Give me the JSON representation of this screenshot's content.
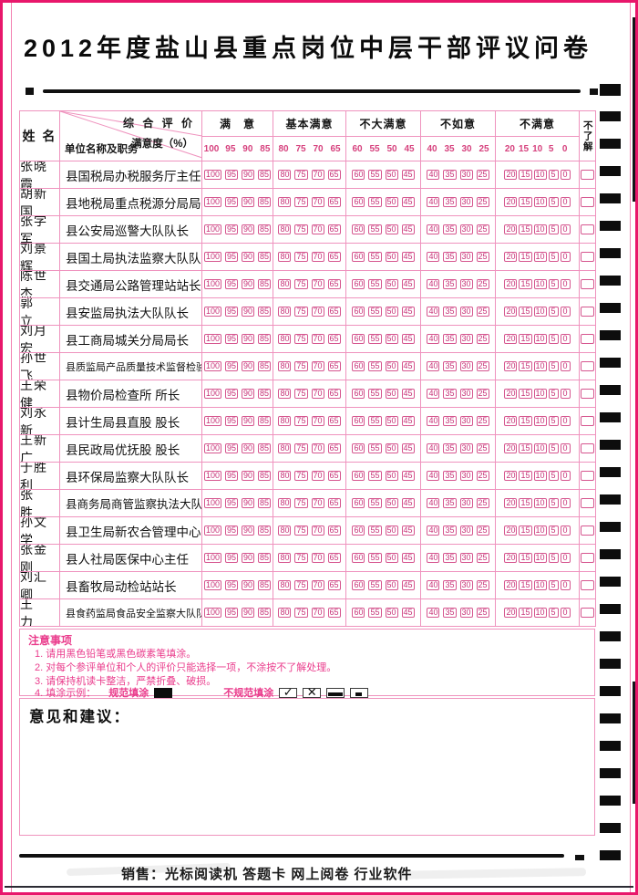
{
  "page": {
    "title": "2012年度盐山县重点岗位中层干部评议问卷",
    "footer": "销售：光标阅读机 答题卡 网上阅卷 行业软件"
  },
  "table": {
    "name_header": "姓 名",
    "unit_header": "单位名称及职务",
    "eval_header": "综 合 评 价",
    "satisfaction_header": "满意度（%）",
    "unknown_header": "不了解",
    "categories": [
      {
        "label": "满　意",
        "values": [
          "100",
          "95",
          "90",
          "85"
        ]
      },
      {
        "label": "基本满意",
        "values": [
          "80",
          "75",
          "70",
          "65"
        ]
      },
      {
        "label": "不大满意",
        "values": [
          "60",
          "55",
          "50",
          "45"
        ]
      },
      {
        "label": "不如意",
        "values": [
          "40",
          "35",
          "30",
          "25"
        ]
      },
      {
        "label": "不满意",
        "values": [
          "20",
          "15",
          "10",
          "5",
          "0"
        ]
      }
    ],
    "rows": [
      {
        "name": "张晓霞",
        "unit": "县国税局办税服务厅主任"
      },
      {
        "name": "胡新国",
        "unit": "县地税局重点税源分局局长"
      },
      {
        "name": "张学军",
        "unit": "县公安局巡警大队队长"
      },
      {
        "name": "刘景辉",
        "unit": "县国土局执法监察大队队长"
      },
      {
        "name": "陈世杰",
        "unit": "县交通局公路管理站站长"
      },
      {
        "name": "郭　立",
        "unit": "县安监局执法大队队长"
      },
      {
        "name": "刘月宏",
        "unit": "县工商局城关分局局长"
      },
      {
        "name": "孙世飞",
        "unit": "县质监局产品质量技术监督检验所所长"
      },
      {
        "name": "王荣健",
        "unit": "县物价局检查所 所长"
      },
      {
        "name": "刘永新",
        "unit": "县计生局县直股 股长"
      },
      {
        "name": "王新广",
        "unit": "县民政局优抚股 股长"
      },
      {
        "name": "于胜利",
        "unit": "县环保局监察大队队长"
      },
      {
        "name": "张　胜",
        "unit": "县商务局商管监察执法大队队长"
      },
      {
        "name": "孙文学",
        "unit": "县卫生局新农合管理中心主任"
      },
      {
        "name": "张金刚",
        "unit": "县人社局医保中心主任"
      },
      {
        "name": "刘汇卿",
        "unit": "县畜牧局动检站站长"
      },
      {
        "name": "王　力",
        "unit": "县食药监局食品安全监察大队队长"
      }
    ]
  },
  "notes": {
    "title": "注意事项",
    "items": [
      "1. 请用黑色铅笔或黑色碳素笔填涂。",
      "2. 对每个参评单位和个人的评价只能选择一项，不涂按不了解处理。",
      "3. 请保持机读卡整洁，严禁折叠、破损。"
    ],
    "item4_prefix": "4. 填涂示例：",
    "correct_label": "规范填涂",
    "incorrect_label": "不规范填涂"
  },
  "suggestions": {
    "title": "意见和建议："
  },
  "colors": {
    "frame_pink": "#e8176b",
    "grid_pink": "#ef93be",
    "bubble_magenta": "#d6568f",
    "note_pink": "#ea3c8c",
    "text_black": "#101010"
  }
}
